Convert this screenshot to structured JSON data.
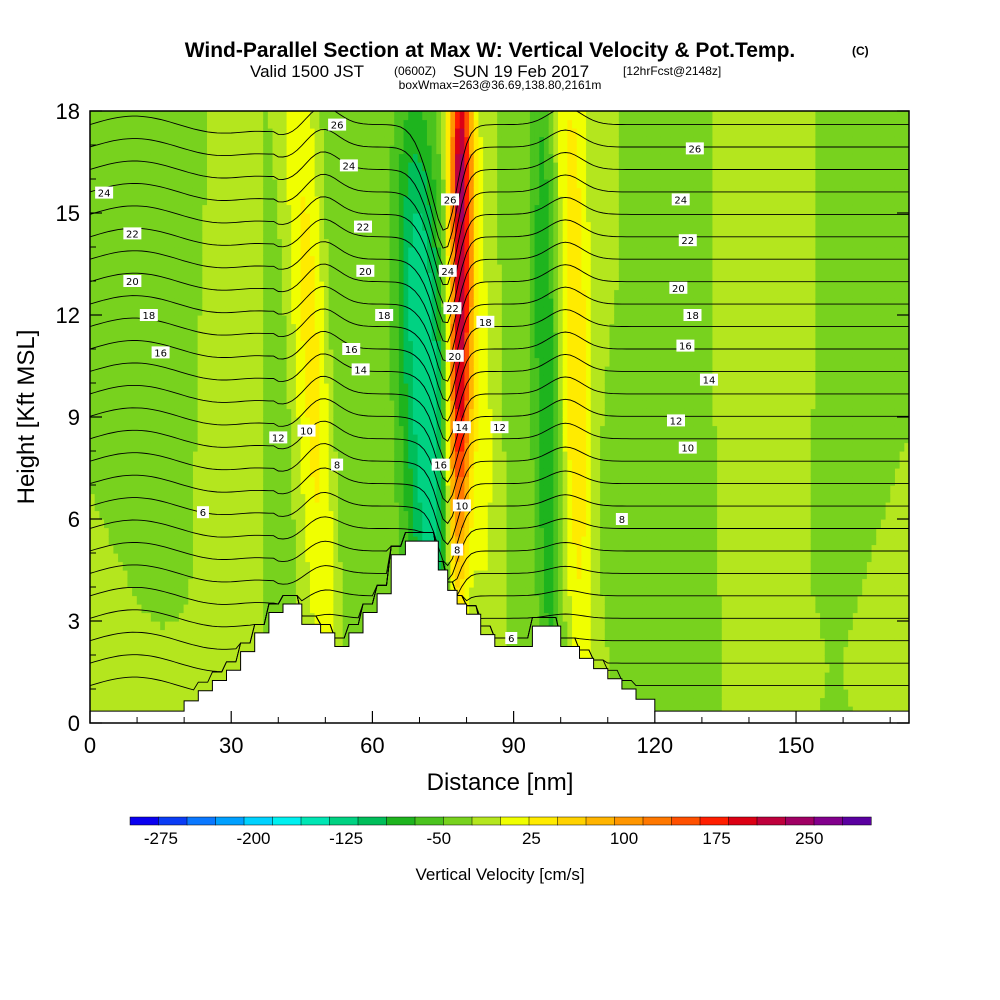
{
  "chart_data": {
    "type": "heatmap",
    "title": "Wind-Parallel Section at Max W: Vertical Velocity & Pot.Temp.",
    "title_mark": "(C)",
    "subtitle_parts": [
      "Valid 1500 JST",
      "(0600Z)",
      "SUN 19 Feb 2017",
      "[12hrFcst@2148z]"
    ],
    "subtitle2": "boxWmax=263@36.69,138.80,2161m",
    "xlabel": "Distance [nm]",
    "ylabel": "Height [Kft MSL]",
    "xlim": [
      0,
      174
    ],
    "ylim": [
      0,
      18
    ],
    "xticks": [
      0,
      30,
      60,
      90,
      120,
      150
    ],
    "yticks": [
      0,
      3,
      6,
      9,
      12,
      15,
      18
    ],
    "grid": false,
    "colorbar": {
      "label": "Vertical Velocity [cm/s]",
      "range": [
        -300,
        275
      ],
      "step": 25,
      "tick_values": [
        -275,
        -200,
        -125,
        -50,
        25,
        100,
        175,
        250
      ],
      "colors": [
        "#0a00f0",
        "#0a3cf5",
        "#0a78ff",
        "#00a0ff",
        "#00d2ff",
        "#00f0f0",
        "#00e6b4",
        "#00d282",
        "#00be5a",
        "#1eb41e",
        "#4bc31e",
        "#78d21e",
        "#b4e61e",
        "#f0ff00",
        "#ffeb00",
        "#ffd200",
        "#ffb400",
        "#ff9600",
        "#ff7800",
        "#ff5000",
        "#ff1e00",
        "#dc0014",
        "#be003c",
        "#a00064",
        "#82008c",
        "#5a00a0"
      ]
    },
    "terrain_kft": [
      [
        0,
        0.35
      ],
      [
        20,
        0.35
      ],
      [
        20,
        0.65
      ],
      [
        23,
        0.65
      ],
      [
        23,
        0.95
      ],
      [
        26,
        0.95
      ],
      [
        26,
        1.25
      ],
      [
        29,
        1.25
      ],
      [
        29,
        1.55
      ],
      [
        32,
        1.55
      ],
      [
        32,
        2.1
      ],
      [
        35,
        2.1
      ],
      [
        35,
        2.65
      ],
      [
        38,
        2.65
      ],
      [
        38,
        3.25
      ],
      [
        41,
        3.25
      ],
      [
        41,
        3.5
      ],
      [
        45,
        3.5
      ],
      [
        45,
        2.9
      ],
      [
        49,
        2.9
      ],
      [
        49,
        2.65
      ],
      [
        52,
        2.65
      ],
      [
        52,
        2.25
      ],
      [
        55,
        2.25
      ],
      [
        55,
        2.65
      ],
      [
        58,
        2.65
      ],
      [
        58,
        3.25
      ],
      [
        61,
        3.25
      ],
      [
        61,
        3.8
      ],
      [
        64,
        3.8
      ],
      [
        64,
        4.95
      ],
      [
        67,
        4.95
      ],
      [
        67,
        5.35
      ],
      [
        71,
        5.35
      ],
      [
        71,
        5.35
      ],
      [
        74,
        5.35
      ],
      [
        74,
        4.5
      ],
      [
        76,
        4.5
      ],
      [
        76,
        3.9
      ],
      [
        78,
        3.9
      ],
      [
        78,
        3.5
      ],
      [
        80,
        3.5
      ],
      [
        80,
        3.2
      ],
      [
        83,
        3.2
      ],
      [
        83,
        2.6
      ],
      [
        86,
        2.6
      ],
      [
        86,
        2.25
      ],
      [
        89,
        2.25
      ],
      [
        89,
        2.25
      ],
      [
        94,
        2.25
      ],
      [
        94,
        2.85
      ],
      [
        100,
        2.85
      ],
      [
        100,
        2.25
      ],
      [
        104,
        2.25
      ],
      [
        104,
        1.9
      ],
      [
        107,
        1.9
      ],
      [
        107,
        1.6
      ],
      [
        110,
        1.6
      ],
      [
        110,
        1.3
      ],
      [
        113,
        1.3
      ],
      [
        113,
        1.0
      ],
      [
        116,
        1.0
      ],
      [
        116,
        0.7
      ],
      [
        120,
        0.7
      ],
      [
        120,
        0.35
      ],
      [
        124,
        0.35
      ],
      [
        124,
        0.35
      ],
      [
        174,
        0.35
      ]
    ],
    "w_sources_cmps": [
      {
        "x": 72.5,
        "y": 7,
        "dx": 6,
        "dy": 8,
        "tilt": 0.32,
        "w": -115
      },
      {
        "x": 69.5,
        "y": 14.5,
        "dx": 4.5,
        "dy": 5,
        "tilt": 0.15,
        "w": -60
      },
      {
        "x": 78.5,
        "y": 10.5,
        "dx": 2.5,
        "dy": 7.5,
        "tilt": -0.1,
        "w": 265
      },
      {
        "x": 78.5,
        "y": 17,
        "dx": 2.2,
        "dy": 3,
        "tilt": 0,
        "w": 150
      },
      {
        "x": 83,
        "y": 8,
        "dx": 4,
        "dy": 9,
        "tilt": 0.05,
        "w": 35
      },
      {
        "x": 47,
        "y": 11,
        "dx": 4,
        "dy": 11,
        "tilt": 0.35,
        "w": 60
      },
      {
        "x": 53,
        "y": 10,
        "dx": 3,
        "dy": 11,
        "tilt": 0.3,
        "w": -25
      },
      {
        "x": 40,
        "y": 8,
        "dx": 3,
        "dy": 8,
        "tilt": 0.2,
        "w": -20
      },
      {
        "x": 97,
        "y": 10,
        "dx": 3,
        "dy": 12,
        "tilt": 0.12,
        "w": -75
      },
      {
        "x": 103,
        "y": 11,
        "dx": 3.5,
        "dy": 11,
        "tilt": 0.15,
        "w": 75
      },
      {
        "x": 90,
        "y": 13,
        "dx": 3,
        "dy": 9,
        "tilt": 0.1,
        "w": -20
      },
      {
        "x": 17,
        "y": 14,
        "dx": 4,
        "dy": 10,
        "tilt": -0.4,
        "w": -20
      },
      {
        "x": 9,
        "y": 2,
        "dx": 6,
        "dy": 1.5,
        "tilt": 0,
        "w": 15
      },
      {
        "x": 123,
        "y": 13,
        "dx": 4,
        "dy": 9,
        "tilt": 0.1,
        "w": -15
      },
      {
        "x": 160,
        "y": 10,
        "dx": 4,
        "dy": 10,
        "tilt": 0,
        "w": -20
      },
      {
        "x": 146,
        "y": 14,
        "dx": 6,
        "dy": 6,
        "tilt": 0,
        "w": 15
      },
      {
        "x": 110,
        "y": 6,
        "dx": 4,
        "dy": 3,
        "tilt": 0,
        "w": -15
      },
      {
        "x": 32,
        "y": 11,
        "dx": 5,
        "dy": 8,
        "tilt": 0,
        "w": 15
      },
      {
        "x": 165,
        "y": 2,
        "dx": 8,
        "dy": 2,
        "tilt": 0,
        "w": 15
      }
    ],
    "theta_contour_labels": [
      {
        "text": "24",
        "x": 3,
        "y": 15.6
      },
      {
        "text": "22",
        "x": 9,
        "y": 14.4
      },
      {
        "text": "20",
        "x": 9,
        "y": 13.0
      },
      {
        "text": "18",
        "x": 12.5,
        "y": 12.0
      },
      {
        "text": "16",
        "x": 15,
        "y": 10.9
      },
      {
        "text": "6",
        "x": 24,
        "y": 6.2
      },
      {
        "text": "12",
        "x": 40,
        "y": 8.4
      },
      {
        "text": "10",
        "x": 46,
        "y": 8.6
      },
      {
        "text": "8",
        "x": 52.5,
        "y": 7.6
      },
      {
        "text": "26",
        "x": 52.5,
        "y": 17.6
      },
      {
        "text": "24",
        "x": 55,
        "y": 16.4
      },
      {
        "text": "22",
        "x": 58,
        "y": 14.6
      },
      {
        "text": "20",
        "x": 58.5,
        "y": 13.3
      },
      {
        "text": "18",
        "x": 62.5,
        "y": 12.0
      },
      {
        "text": "16",
        "x": 55.5,
        "y": 11.0
      },
      {
        "text": "14",
        "x": 57.5,
        "y": 10.4
      },
      {
        "text": "26",
        "x": 76.5,
        "y": 15.4
      },
      {
        "text": "24",
        "x": 76,
        "y": 13.3
      },
      {
        "text": "22",
        "x": 77,
        "y": 12.2
      },
      {
        "text": "20",
        "x": 77.5,
        "y": 10.8
      },
      {
        "text": "18",
        "x": 84,
        "y": 11.8
      },
      {
        "text": "16",
        "x": 74.5,
        "y": 7.6
      },
      {
        "text": "14",
        "x": 79,
        "y": 8.7
      },
      {
        "text": "12",
        "x": 87,
        "y": 8.7
      },
      {
        "text": "10",
        "x": 79,
        "y": 6.4
      },
      {
        "text": "8",
        "x": 78,
        "y": 5.1
      },
      {
        "text": "6",
        "x": 89.5,
        "y": 2.5
      },
      {
        "text": "26",
        "x": 128.5,
        "y": 16.9
      },
      {
        "text": "24",
        "x": 125.5,
        "y": 15.4
      },
      {
        "text": "22",
        "x": 127,
        "y": 14.2
      },
      {
        "text": "20",
        "x": 125,
        "y": 12.8
      },
      {
        "text": "18",
        "x": 128,
        "y": 12.0
      },
      {
        "text": "16",
        "x": 126.5,
        "y": 11.1
      },
      {
        "text": "14",
        "x": 131.5,
        "y": 10.1
      },
      {
        "text": "12",
        "x": 124.5,
        "y": 8.9
      },
      {
        "text": "10",
        "x": 127,
        "y": 8.1
      },
      {
        "text": "8",
        "x": 113,
        "y": 6.0
      }
    ],
    "theta_level_count": 26
  }
}
